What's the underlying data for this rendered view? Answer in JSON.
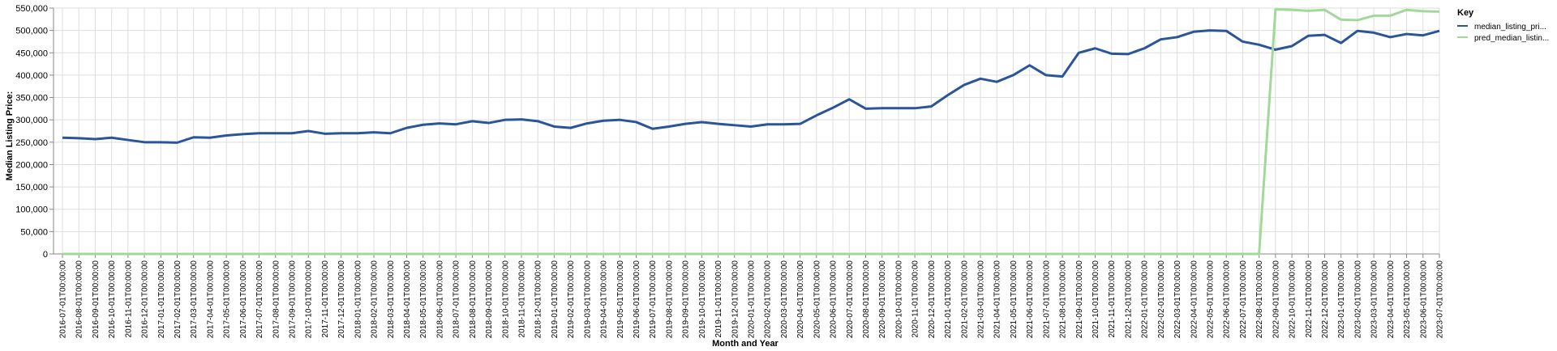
{
  "chart_data": {
    "type": "line",
    "xlabel": "Month and Year",
    "ylabel": "Median Listing Price:",
    "ylim": [
      0,
      550000
    ],
    "y_ticks": [
      0,
      50000,
      100000,
      150000,
      200000,
      250000,
      300000,
      350000,
      400000,
      450000,
      500000,
      550000
    ],
    "y_tick_labels": [
      "0",
      "50,000",
      "100,000",
      "150,000",
      "200,000",
      "250,000",
      "300,000",
      "350,000",
      "400,000",
      "450,000",
      "500,000",
      "550,000"
    ],
    "grid": true,
    "legend": {
      "title": "Key",
      "placement": "right"
    },
    "x": [
      "2016-07-01T00:00:00",
      "2016-08-01T00:00:00",
      "2016-09-01T00:00:00",
      "2016-10-01T00:00:00",
      "2016-11-01T00:00:00",
      "2016-12-01T00:00:00",
      "2017-01-01T00:00:00",
      "2017-02-01T00:00:00",
      "2017-03-01T00:00:00",
      "2017-04-01T00:00:00",
      "2017-05-01T00:00:00",
      "2017-06-01T00:00:00",
      "2017-07-01T00:00:00",
      "2017-08-01T00:00:00",
      "2017-09-01T00:00:00",
      "2017-10-01T00:00:00",
      "2017-11-01T00:00:00",
      "2017-12-01T00:00:00",
      "2018-01-01T00:00:00",
      "2018-02-01T00:00:00",
      "2018-03-01T00:00:00",
      "2018-04-01T00:00:00",
      "2018-05-01T00:00:00",
      "2018-06-01T00:00:00",
      "2018-07-01T00:00:00",
      "2018-08-01T00:00:00",
      "2018-09-01T00:00:00",
      "2018-10-01T00:00:00",
      "2018-11-01T00:00:00",
      "2018-12-01T00:00:00",
      "2019-01-01T00:00:00",
      "2019-02-01T00:00:00",
      "2019-03-01T00:00:00",
      "2019-04-01T00:00:00",
      "2019-05-01T00:00:00",
      "2019-06-01T00:00:00",
      "2019-07-01T00:00:00",
      "2019-08-01T00:00:00",
      "2019-09-01T00:00:00",
      "2019-10-01T00:00:00",
      "2019-11-01T00:00:00",
      "2019-12-01T00:00:00",
      "2020-01-01T00:00:00",
      "2020-02-01T00:00:00",
      "2020-03-01T00:00:00",
      "2020-04-01T00:00:00",
      "2020-05-01T00:00:00",
      "2020-06-01T00:00:00",
      "2020-07-01T00:00:00",
      "2020-08-01T00:00:00",
      "2020-09-01T00:00:00",
      "2020-10-01T00:00:00",
      "2020-11-01T00:00:00",
      "2020-12-01T00:00:00",
      "2021-01-01T00:00:00",
      "2021-02-01T00:00:00",
      "2021-03-01T00:00:00",
      "2021-04-01T00:00:00",
      "2021-05-01T00:00:00",
      "2021-06-01T00:00:00",
      "2021-07-01T00:00:00",
      "2021-08-01T00:00:00",
      "2021-09-01T00:00:00",
      "2021-10-01T00:00:00",
      "2021-11-01T00:00:00",
      "2021-12-01T00:00:00",
      "2022-01-01T00:00:00",
      "2022-02-01T00:00:00",
      "2022-03-01T00:00:00",
      "2022-04-01T00:00:00",
      "2022-05-01T00:00:00",
      "2022-06-01T00:00:00",
      "2022-07-01T00:00:00",
      "2022-08-01T00:00:00",
      "2022-09-01T00:00:00",
      "2022-10-01T00:00:00",
      "2022-11-01T00:00:00",
      "2022-12-01T00:00:00",
      "2023-01-01T00:00:00",
      "2023-02-01T00:00:00",
      "2023-03-01T00:00:00",
      "2023-04-01T00:00:00",
      "2023-05-01T00:00:00",
      "2023-06-01T00:00:00",
      "2023-07-01T00:00:00"
    ],
    "series": [
      {
        "name": "median_listing_pri...",
        "color": "#2a5599",
        "values": [
          260000,
          259000,
          257000,
          260000,
          255000,
          250000,
          250000,
          249000,
          261000,
          260000,
          265000,
          268000,
          270000,
          270000,
          270000,
          275000,
          269000,
          270000,
          270000,
          272000,
          270000,
          282000,
          289000,
          292000,
          290000,
          297000,
          293000,
          300000,
          301000,
          297000,
          285000,
          282000,
          292000,
          298000,
          300000,
          295000,
          280000,
          285000,
          291000,
          295000,
          291000,
          288000,
          285000,
          290000,
          290000,
          291000,
          310000,
          327000,
          346000,
          325000,
          326000,
          326000,
          326000,
          330000,
          355000,
          378000,
          392000,
          385000,
          400000,
          422000,
          400000,
          397000,
          450000,
          460000,
          448000,
          447000,
          460000,
          480000,
          485000,
          497000,
          500000,
          499000,
          475000,
          468000,
          457000,
          465000,
          488000,
          490000,
          472000,
          499000,
          495000,
          485000,
          492000,
          489000,
          499000
        ]
      },
      {
        "name": "pred_median_listin...",
        "color": "#a2d99a",
        "values": [
          0,
          0,
          0,
          0,
          0,
          0,
          0,
          0,
          0,
          0,
          0,
          0,
          0,
          0,
          0,
          0,
          0,
          0,
          0,
          0,
          0,
          0,
          0,
          0,
          0,
          0,
          0,
          0,
          0,
          0,
          0,
          0,
          0,
          0,
          0,
          0,
          0,
          0,
          0,
          0,
          0,
          0,
          0,
          0,
          0,
          0,
          0,
          0,
          0,
          0,
          0,
          0,
          0,
          0,
          0,
          0,
          0,
          0,
          0,
          0,
          0,
          0,
          0,
          0,
          0,
          0,
          0,
          0,
          0,
          0,
          0,
          0,
          0,
          0,
          547000,
          546000,
          544000,
          546000,
          524000,
          523000,
          533000,
          533000,
          546000,
          543000,
          542000
        ]
      }
    ]
  }
}
